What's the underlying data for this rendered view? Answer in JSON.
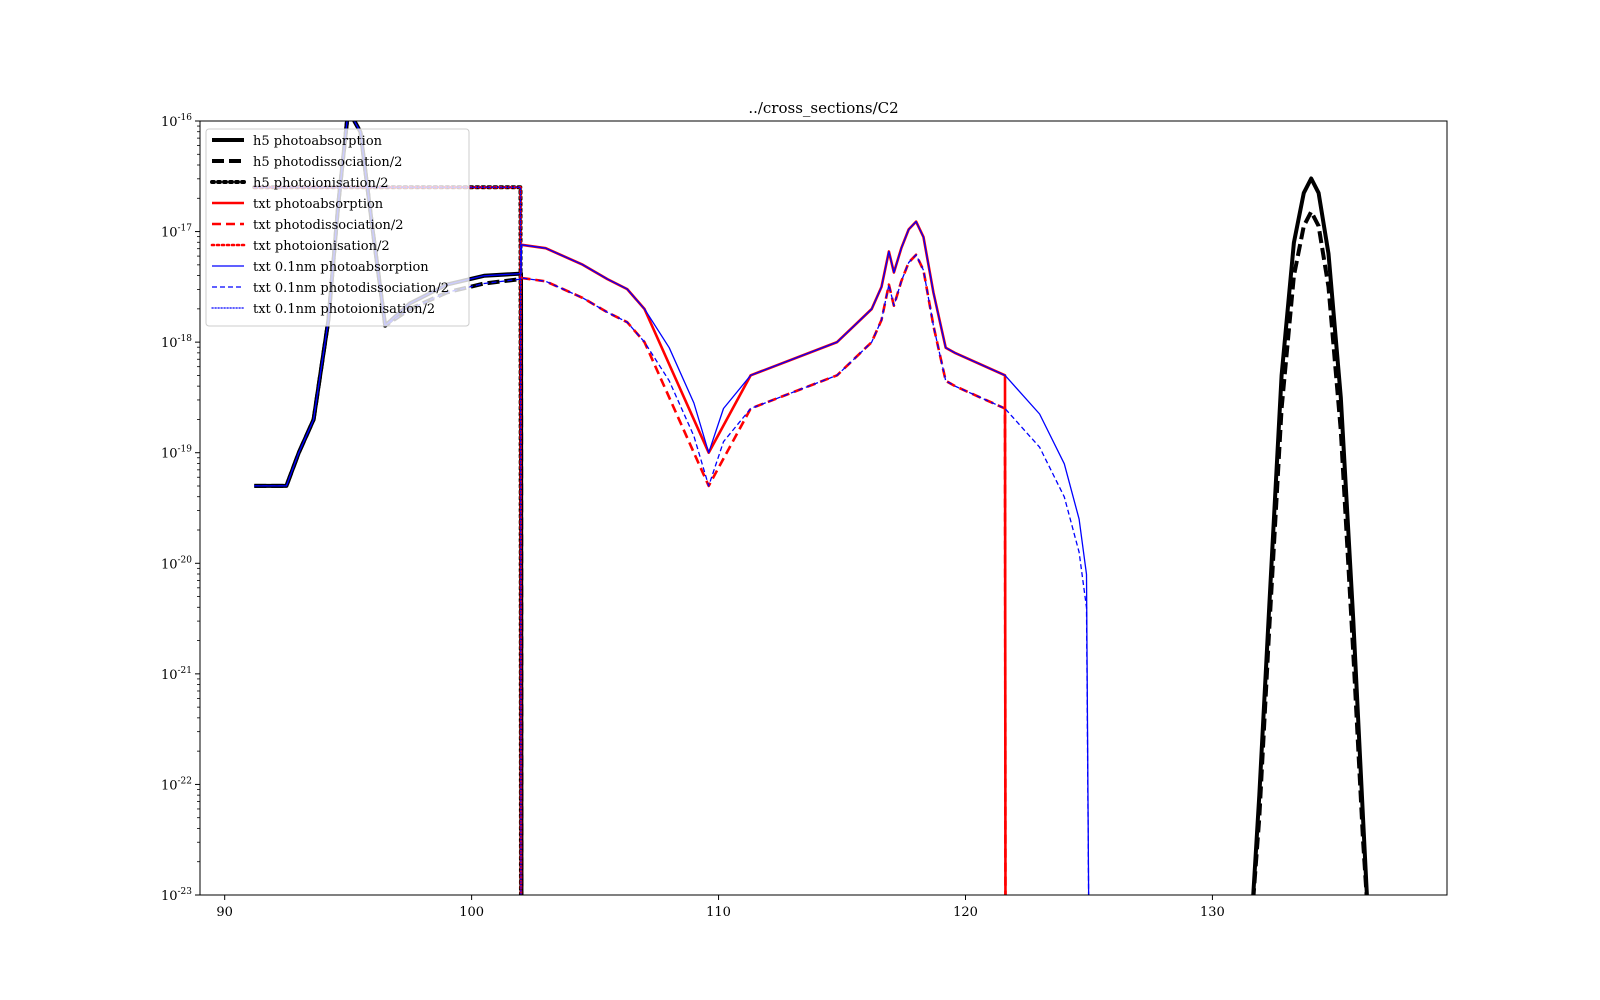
{
  "chart_data": {
    "type": "line",
    "title": "../cross_sections/C2",
    "xlabel": "",
    "ylabel": "",
    "xlim": [
      89.0,
      139.5
    ],
    "ylim_exponent": [
      -23,
      -16
    ],
    "yscale": "log",
    "xticks": [
      90,
      100,
      110,
      120,
      130
    ],
    "xtick_labels": [
      "90",
      "100",
      "110",
      "120",
      "130"
    ],
    "yticks_exponent": [
      -16,
      -17,
      -18,
      -19,
      -20,
      -21,
      -22,
      -23
    ],
    "ytick_base": "10",
    "ytick_exponent_labels": [
      "-16",
      "-17",
      "-18",
      "-19",
      "-20",
      "-21",
      "-22",
      "-23"
    ],
    "grid": false,
    "legend_position": "upper-left",
    "note": "y values are given as log10 of cross section",
    "series": [
      {
        "name": "h5 photoabsorption",
        "color": "#000000",
        "style": "solid",
        "width": "thick",
        "group": "abs_full",
        "x": [
          91.2,
          92.5,
          93.0,
          93.6,
          94.2,
          94.6,
          95.0,
          95.5,
          96.0,
          96.5,
          97.5,
          99.0,
          100.5,
          102.0,
          102.02
        ],
        "y": [
          -19.3,
          -19.3,
          -19.0,
          -18.7,
          -17.8,
          -16.75,
          -15.9,
          -16.1,
          -17.0,
          -17.85,
          -17.65,
          -17.48,
          -17.4,
          -17.38,
          -23.5
        ]
      },
      {
        "name": "h5 photodissociation/2",
        "color": "#000000",
        "style": "dashed",
        "width": "thick",
        "group": "dis_full",
        "x": [
          91.2,
          92.5,
          93.0,
          93.6,
          94.2,
          94.6,
          95.0,
          95.5,
          96.0,
          96.5,
          97.5,
          99.0,
          100.5,
          102.0,
          102.02
        ],
        "y": [
          -19.3,
          -19.3,
          -19.0,
          -18.7,
          -17.8,
          -16.75,
          -15.9,
          -16.1,
          -17.0,
          -17.85,
          -17.7,
          -17.55,
          -17.47,
          -17.43,
          -23.5
        ]
      },
      {
        "name": "h5 photoionisation/2",
        "color": "#000000",
        "style": "dotted",
        "width": "thick",
        "group": "ion",
        "x": [
          91.2,
          96.0,
          100.0,
          101.98,
          102.0
        ],
        "y": [
          -16.6,
          -16.6,
          -16.6,
          -16.6,
          -23.5
        ]
      },
      {
        "name": "txt photoabsorption",
        "color": "#ff0000",
        "style": "solid",
        "width": "medium",
        "group": "abs_txt",
        "x": [
          102.02,
          103.0,
          104.5,
          105.5,
          106.3,
          107.0,
          109.6,
          111.3,
          114.8,
          115.5,
          116.2,
          116.6,
          116.9,
          117.1,
          117.4,
          117.7,
          118.0,
          118.3,
          118.7,
          119.2,
          119.6,
          121.6,
          121.62
        ],
        "y": [
          -17.12,
          -17.15,
          -17.3,
          -17.43,
          -17.52,
          -17.7,
          -19.0,
          -18.3,
          -18.0,
          -17.85,
          -17.7,
          -17.5,
          -17.18,
          -17.37,
          -17.15,
          -16.98,
          -16.91,
          -17.05,
          -17.55,
          -18.05,
          -18.1,
          -18.3,
          -23.5
        ]
      },
      {
        "name": "txt photodissociation/2",
        "color": "#ff0000",
        "style": "dashed",
        "width": "medium",
        "group": "dis_txt",
        "x": [
          102.02,
          103.0,
          104.5,
          105.5,
          106.3,
          107.0,
          109.6,
          111.3,
          114.8,
          115.5,
          116.2,
          116.6,
          116.9,
          117.1,
          117.4,
          117.7,
          118.0,
          118.3,
          118.7,
          119.2,
          119.6,
          121.6,
          121.62
        ],
        "y": [
          -17.42,
          -17.45,
          -17.6,
          -17.73,
          -17.82,
          -18.0,
          -19.3,
          -18.6,
          -18.3,
          -18.15,
          -18.0,
          -17.8,
          -17.48,
          -17.67,
          -17.45,
          -17.28,
          -17.21,
          -17.35,
          -17.85,
          -18.35,
          -18.4,
          -18.6,
          -23.5
        ]
      },
      {
        "name": "txt photoionisation/2",
        "color": "#ff0000",
        "style": "dotted",
        "width": "medium",
        "group": "ion",
        "x": [
          91.2,
          96.0,
          100.0,
          101.98,
          102.0
        ],
        "y": [
          -16.6,
          -16.6,
          -16.6,
          -16.6,
          -23.5
        ]
      },
      {
        "name": "txt 0.1nm photoabsorption",
        "color": "#0000ff",
        "style": "solid",
        "width": "thin",
        "group": "abs_blue",
        "x": [
          91.2,
          92.5,
          93.0,
          93.6,
          94.2,
          94.6,
          95.0,
          95.5,
          96.0,
          96.5,
          97.5,
          99.0,
          100.5,
          102.0,
          102.02,
          103.0,
          104.5,
          105.5,
          106.3,
          107.0,
          108.0,
          109.0,
          109.6,
          110.2,
          111.3,
          114.8,
          115.5,
          116.2,
          116.6,
          116.9,
          117.1,
          117.4,
          117.7,
          118.0,
          118.3,
          118.7,
          119.2,
          119.6,
          121.6,
          123.0,
          124.0,
          124.6,
          124.9,
          125.0
        ],
        "y": [
          -19.3,
          -19.3,
          -19.0,
          -18.7,
          -17.8,
          -16.75,
          -15.9,
          -16.1,
          -17.0,
          -17.85,
          -17.65,
          -17.48,
          -17.4,
          -17.38,
          -17.12,
          -17.15,
          -17.3,
          -17.43,
          -17.52,
          -17.7,
          -18.05,
          -18.55,
          -19.0,
          -18.6,
          -18.3,
          -18.0,
          -17.85,
          -17.7,
          -17.5,
          -17.18,
          -17.37,
          -17.15,
          -16.98,
          -16.91,
          -17.05,
          -17.55,
          -18.05,
          -18.1,
          -18.3,
          -18.65,
          -19.1,
          -19.6,
          -20.1,
          -23.5
        ]
      },
      {
        "name": "txt 0.1nm photodissociation/2",
        "color": "#0000ff",
        "style": "dashed",
        "width": "thin",
        "group": "dis_blue",
        "x": [
          91.2,
          92.5,
          93.0,
          93.6,
          94.2,
          94.6,
          95.0,
          95.5,
          96.0,
          96.5,
          97.5,
          99.0,
          100.5,
          102.0,
          102.02,
          103.0,
          104.5,
          105.5,
          106.3,
          107.0,
          108.0,
          109.0,
          109.6,
          110.2,
          111.3,
          114.8,
          115.5,
          116.2,
          116.6,
          116.9,
          117.1,
          117.4,
          117.7,
          118.0,
          118.3,
          118.7,
          119.2,
          119.6,
          121.6,
          123.0,
          124.0,
          124.6,
          124.9,
          125.0
        ],
        "y": [
          -19.3,
          -19.3,
          -19.0,
          -18.7,
          -17.8,
          -16.75,
          -15.9,
          -16.1,
          -17.0,
          -17.85,
          -17.7,
          -17.55,
          -17.47,
          -17.43,
          -17.42,
          -17.45,
          -17.6,
          -17.73,
          -17.82,
          -18.0,
          -18.35,
          -18.85,
          -19.3,
          -18.9,
          -18.6,
          -18.3,
          -18.15,
          -18.0,
          -17.8,
          -17.48,
          -17.67,
          -17.45,
          -17.28,
          -17.21,
          -17.35,
          -17.85,
          -18.35,
          -18.4,
          -18.6,
          -18.95,
          -19.4,
          -19.9,
          -20.4,
          -23.5
        ]
      },
      {
        "name": "txt 0.1nm photoionisation/2",
        "color": "#0000ff",
        "style": "dotted",
        "width": "thin",
        "group": "ion",
        "x": [
          91.2,
          96.0,
          100.0,
          101.98,
          102.0
        ],
        "y": [
          -16.6,
          -16.6,
          -16.6,
          -16.6,
          -23.5
        ]
      },
      {
        "name": "",
        "color": "#000000",
        "style": "solid",
        "width": "thick",
        "group": "peak_abs",
        "x": [
          131.6,
          131.9,
          132.3,
          132.8,
          133.3,
          133.7,
          134.0,
          134.3,
          134.7,
          135.2,
          135.7,
          136.1,
          136.3
        ],
        "y": [
          -23.2,
          -22.1,
          -20.4,
          -18.3,
          -17.1,
          -16.65,
          -16.52,
          -16.65,
          -17.2,
          -18.5,
          -20.5,
          -22.3,
          -23.2
        ]
      },
      {
        "name": "",
        "color": "#000000",
        "style": "dashed",
        "width": "thick",
        "group": "peak_dis",
        "x": [
          131.6,
          131.9,
          132.3,
          132.8,
          133.3,
          133.7,
          134.0,
          134.3,
          134.7,
          135.2,
          135.7,
          136.1,
          136.3
        ],
        "y": [
          -23.2,
          -22.3,
          -20.6,
          -18.6,
          -17.4,
          -16.95,
          -16.82,
          -16.95,
          -17.5,
          -18.8,
          -20.8,
          -22.5,
          -23.2
        ]
      }
    ]
  }
}
